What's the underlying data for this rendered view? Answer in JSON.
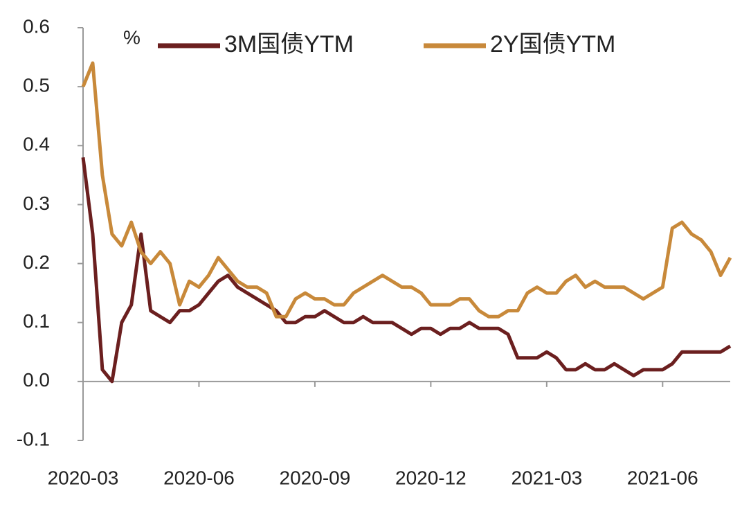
{
  "chart_data": {
    "type": "line",
    "y_unit": "%",
    "x": [
      "2020-03",
      "2020-03",
      "2020-03",
      "2020-03",
      "2020-04",
      "2020-04",
      "2020-04",
      "2020-04",
      "2020-05",
      "2020-05",
      "2020-05",
      "2020-05",
      "2020-06",
      "2020-06",
      "2020-06",
      "2020-06",
      "2020-07",
      "2020-07",
      "2020-07",
      "2020-07",
      "2020-08",
      "2020-08",
      "2020-08",
      "2020-08",
      "2020-09",
      "2020-09",
      "2020-09",
      "2020-09",
      "2020-10",
      "2020-10",
      "2020-10",
      "2020-10",
      "2020-11",
      "2020-11",
      "2020-11",
      "2020-11",
      "2020-12",
      "2020-12",
      "2020-12",
      "2020-12",
      "2021-01",
      "2021-01",
      "2021-01",
      "2021-01",
      "2021-02",
      "2021-02",
      "2021-02",
      "2021-02",
      "2021-03",
      "2021-03",
      "2021-03",
      "2021-03",
      "2021-04",
      "2021-04",
      "2021-04",
      "2021-04",
      "2021-05",
      "2021-05",
      "2021-05",
      "2021-05",
      "2021-06",
      "2021-06",
      "2021-06",
      "2021-06",
      "2021-07",
      "2021-07",
      "2021-07",
      "2021-07"
    ],
    "series": [
      {
        "name": "3M国债YTM",
        "color": "#6b1f1f",
        "values": [
          0.38,
          0.25,
          0.02,
          0.0,
          0.1,
          0.13,
          0.25,
          0.12,
          0.11,
          0.1,
          0.12,
          0.12,
          0.13,
          0.15,
          0.17,
          0.18,
          0.16,
          0.15,
          0.14,
          0.13,
          0.12,
          0.1,
          0.1,
          0.11,
          0.11,
          0.12,
          0.11,
          0.1,
          0.1,
          0.11,
          0.1,
          0.1,
          0.1,
          0.09,
          0.08,
          0.09,
          0.09,
          0.08,
          0.09,
          0.09,
          0.1,
          0.09,
          0.09,
          0.09,
          0.08,
          0.04,
          0.04,
          0.04,
          0.05,
          0.04,
          0.02,
          0.02,
          0.03,
          0.02,
          0.02,
          0.03,
          0.02,
          0.01,
          0.02,
          0.02,
          0.02,
          0.03,
          0.05,
          0.05,
          0.05,
          0.05,
          0.05,
          0.06
        ]
      },
      {
        "name": "2Y国债YTM",
        "color": "#c8893a",
        "values": [
          0.5,
          0.54,
          0.35,
          0.25,
          0.23,
          0.27,
          0.22,
          0.2,
          0.22,
          0.2,
          0.13,
          0.17,
          0.16,
          0.18,
          0.21,
          0.19,
          0.17,
          0.16,
          0.16,
          0.15,
          0.11,
          0.11,
          0.14,
          0.15,
          0.14,
          0.14,
          0.13,
          0.13,
          0.15,
          0.16,
          0.17,
          0.18,
          0.17,
          0.16,
          0.16,
          0.15,
          0.13,
          0.13,
          0.13,
          0.14,
          0.14,
          0.12,
          0.11,
          0.11,
          0.12,
          0.12,
          0.15,
          0.16,
          0.15,
          0.15,
          0.17,
          0.18,
          0.16,
          0.17,
          0.16,
          0.16,
          0.16,
          0.15,
          0.14,
          0.15,
          0.16,
          0.26,
          0.27,
          0.25,
          0.24,
          0.22,
          0.18,
          0.21
        ]
      }
    ],
    "xticks": [
      "2020-03",
      "2020-06",
      "2020-09",
      "2020-12",
      "2021-03",
      "2021-06"
    ],
    "ylim": [
      -0.1,
      0.6
    ],
    "yticks": [
      -0.1,
      {
        "value": 0,
        "label": "0.0"
      },
      0.1,
      0.2,
      0.3,
      0.4,
      0.5,
      0.6
    ],
    "grid": false
  }
}
